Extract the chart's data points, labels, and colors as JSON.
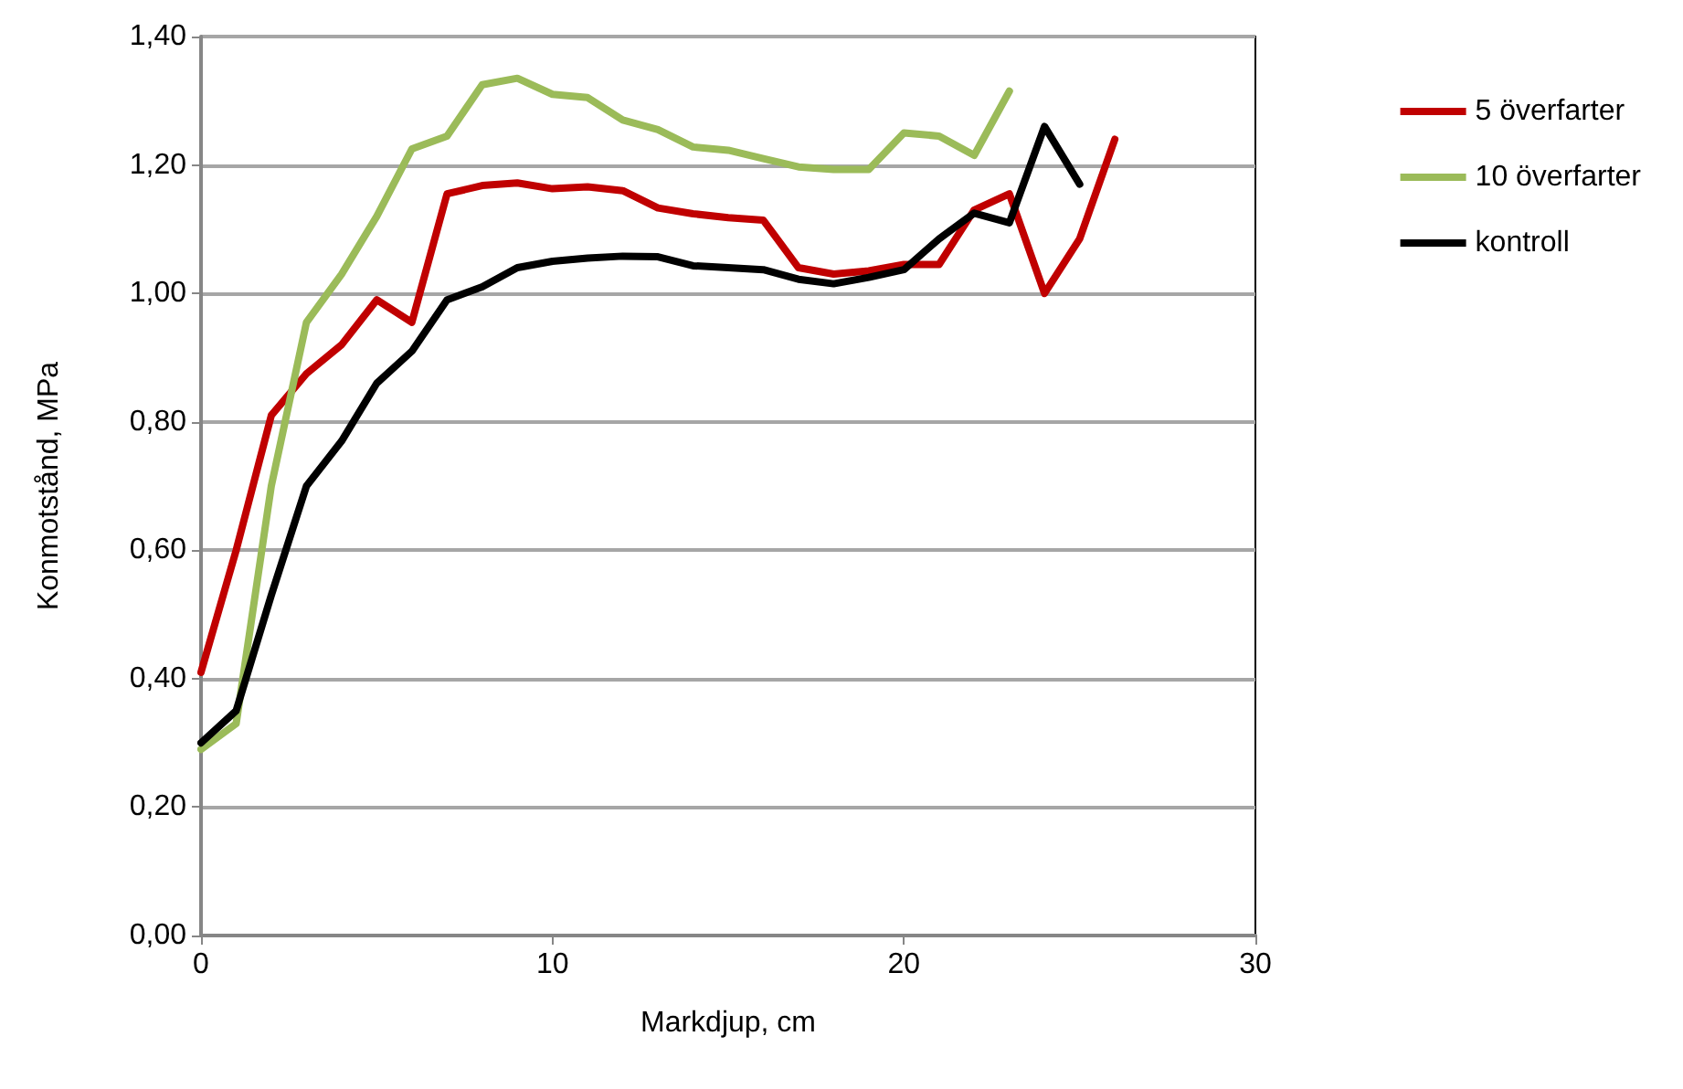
{
  "chart_data": {
    "type": "line",
    "xlabel": "Markdjup, cm",
    "ylabel": "Konmotstånd, MPa",
    "xlim": [
      0,
      30
    ],
    "xticks": [
      0,
      10,
      20,
      30
    ],
    "ylim": [
      0,
      1.4
    ],
    "yticks": [
      {
        "value": 0,
        "label": "0,00"
      },
      {
        "value": 0.2,
        "label": "0,20"
      },
      {
        "value": 0.4,
        "label": "0,40"
      },
      {
        "value": 0.6,
        "label": "0,60"
      },
      {
        "value": 0.8,
        "label": "0,80"
      },
      {
        "value": 1,
        "label": "1,00"
      },
      {
        "value": 1.2,
        "label": "1,20"
      },
      {
        "value": 1.4,
        "label": "1,40"
      }
    ],
    "grid": "y",
    "legend": "right",
    "marker": "none",
    "line_style": "solid",
    "series": [
      {
        "name": "5 överfarter",
        "color": "#c00000",
        "x": [
          0,
          1,
          2,
          3,
          4,
          5,
          6,
          7,
          8,
          9,
          10,
          11,
          12,
          13,
          14,
          15,
          16,
          17,
          18,
          19,
          20,
          21,
          22,
          23,
          24,
          25,
          26
        ],
        "values": [
          0.41,
          0.6,
          0.81,
          0.875,
          0.92,
          0.99,
          0.955,
          1.155,
          1.168,
          1.172,
          1.163,
          1.166,
          1.16,
          1.133,
          1.124,
          1.118,
          1.114,
          1.04,
          1.03,
          1.035,
          1.045,
          1.045,
          1.13,
          1.155,
          1.0,
          1.085,
          1.24
        ]
      },
      {
        "name": "10 överfarter",
        "color": "#9bbb59",
        "x": [
          0,
          1,
          2,
          3,
          4,
          5,
          6,
          7,
          8,
          9,
          10,
          11,
          12,
          13,
          14,
          15,
          16,
          17,
          18,
          19,
          20,
          21,
          22,
          23
        ],
        "values": [
          0.29,
          0.33,
          0.7,
          0.955,
          1.03,
          1.12,
          1.225,
          1.245,
          1.325,
          1.335,
          1.31,
          1.305,
          1.27,
          1.255,
          1.228,
          1.223,
          1.21,
          1.197,
          1.193,
          1.193,
          1.25,
          1.245,
          1.215,
          1.315
        ]
      },
      {
        "name": "kontroll",
        "color": "#000000",
        "x": [
          0,
          1,
          2,
          3,
          4,
          5,
          6,
          7,
          8,
          9,
          10,
          11,
          12,
          13,
          14,
          15,
          16,
          17,
          18,
          19,
          20,
          21,
          22,
          23,
          24,
          25
        ],
        "values": [
          0.3,
          0.35,
          0.53,
          0.7,
          0.77,
          0.86,
          0.91,
          0.99,
          1.01,
          1.04,
          1.05,
          1.055,
          1.058,
          1.057,
          1.043,
          1.04,
          1.037,
          1.022,
          1.015,
          1.025,
          1.037,
          1.085,
          1.125,
          1.11,
          1.26,
          1.17
        ]
      }
    ]
  }
}
